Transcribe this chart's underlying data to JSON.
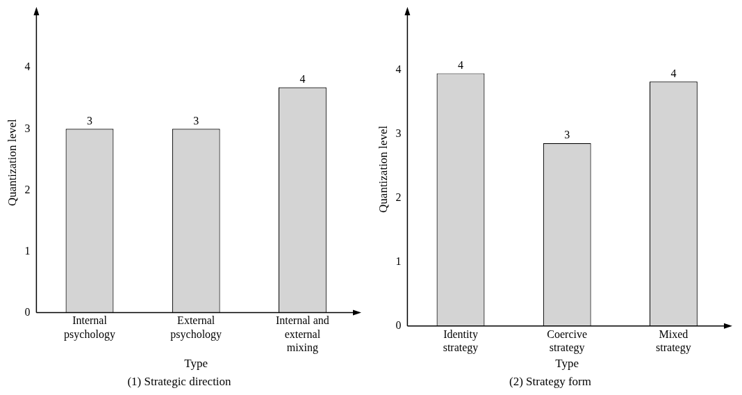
{
  "chart_data": [
    {
      "type": "bar",
      "title": "(1) Strategic direction",
      "xlabel": "Type",
      "ylabel": "Quantization level",
      "categories": [
        "Internal psychology",
        "External psychology",
        "Internal and external mixing"
      ],
      "values": [
        3,
        3,
        3.68
      ],
      "value_labels": [
        "3",
        "3",
        "4"
      ],
      "color": "#d4d4d4",
      "ylim": [
        0,
        4.9
      ],
      "yticks": [
        0,
        1,
        2,
        3,
        4
      ],
      "grid": false,
      "legend": false
    },
    {
      "type": "bar",
      "title": "(2) Strategy form",
      "xlabel": "Type",
      "ylabel": "Quantization level",
      "categories": [
        "Identity strategy",
        "Coercive strategy",
        "Mixed strategy"
      ],
      "values": [
        3.95,
        2.86,
        3.82
      ],
      "value_labels": [
        "4",
        "3",
        "4"
      ],
      "color": "#d4d4d4",
      "ylim": [
        0,
        4.9
      ],
      "yticks": [
        0,
        1,
        2,
        3,
        4
      ],
      "grid": false,
      "legend": false
    }
  ]
}
